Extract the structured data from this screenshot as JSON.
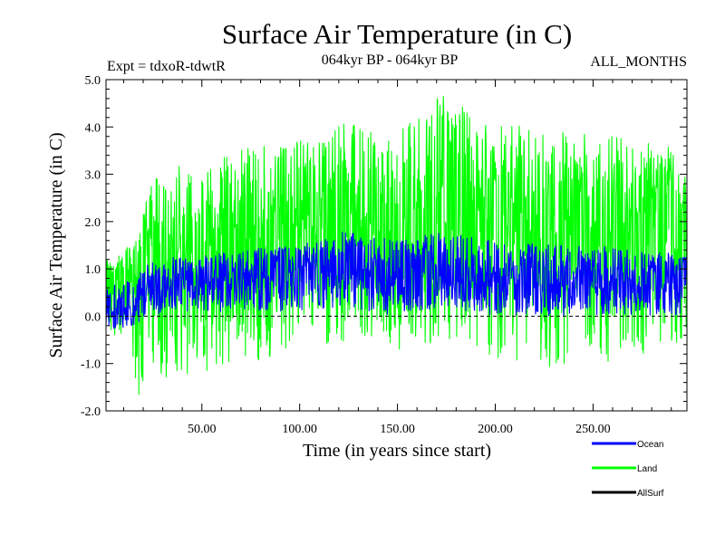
{
  "chart_data": {
    "type": "line",
    "title": "Surface Air Temperature (in C)",
    "subtitle_left": "Expt = tdxoR-tdwtR",
    "subtitle_center": "064kyr BP - 064kyr BP",
    "subtitle_right": "ALL_MONTHS",
    "xlabel": "Time (in years since start)",
    "ylabel": "Surface Air Temperature (in C)",
    "xlim": [
      1,
      298
    ],
    "ylim": [
      -2.0,
      5.0
    ],
    "x_ticks": [
      50,
      100,
      150,
      200,
      250
    ],
    "x_tick_labels": [
      "50.00",
      "100.00",
      "150.00",
      "200.00",
      "250.00"
    ],
    "y_ticks": [
      -2,
      -1,
      0,
      1,
      2,
      3,
      4,
      5
    ],
    "y_tick_labels": [
      "-2.0",
      "-1.0",
      "0.0",
      "1.0",
      "2.0",
      "3.0",
      "4.0",
      "5.0"
    ],
    "reference_line_y": 0.0,
    "series": [
      {
        "name": "Land",
        "color": "#00ff00",
        "envelope_x": [
          1,
          10,
          18,
          22,
          30,
          50,
          75,
          100,
          120,
          150,
          172,
          200,
          230,
          260,
          298
        ],
        "envelope_min": [
          -0.3,
          -0.5,
          -1.7,
          -1.0,
          -1.3,
          -1.2,
          -1.0,
          -0.7,
          -0.6,
          -0.8,
          -0.5,
          -0.9,
          -1.1,
          -1.0,
          -0.5
        ],
        "envelope_max": [
          1.2,
          1.4,
          1.7,
          2.6,
          3.2,
          3.3,
          3.6,
          3.7,
          4.1,
          3.9,
          4.7,
          4.1,
          3.9,
          3.8,
          3.5
        ],
        "mean_x": [
          1,
          15,
          22,
          40,
          70,
          100,
          125,
          150,
          172,
          200,
          250,
          298
        ],
        "mean_y": [
          0.4,
          0.6,
          1.3,
          1.4,
          1.7,
          1.9,
          2.1,
          2.0,
          2.3,
          2.0,
          1.9,
          2.0
        ]
      },
      {
        "name": "Ocean",
        "color": "#0000ff",
        "envelope_x": [
          1,
          15,
          22,
          40,
          70,
          100,
          122,
          150,
          172,
          200,
          250,
          298
        ],
        "envelope_min": [
          -0.3,
          -0.2,
          0.0,
          0.1,
          0.1,
          0.1,
          0.2,
          0.0,
          0.2,
          0.0,
          0.0,
          0.0
        ],
        "envelope_max": [
          0.6,
          0.8,
          1.1,
          1.3,
          1.4,
          1.5,
          1.8,
          1.6,
          1.8,
          1.6,
          1.5,
          1.3
        ],
        "mean_x": [
          1,
          15,
          22,
          40,
          70,
          100,
          122,
          150,
          172,
          200,
          250,
          298
        ],
        "mean_y": [
          0.1,
          0.3,
          0.5,
          0.7,
          0.8,
          0.9,
          1.0,
          0.8,
          0.9,
          0.8,
          0.7,
          0.7
        ]
      },
      {
        "name": "AllSurf",
        "color": "#000000",
        "envelope_x": [],
        "envelope_min": [],
        "envelope_max": [],
        "mean_x": [],
        "mean_y": []
      }
    ],
    "legend": {
      "placement": "bottom-right",
      "entries": [
        {
          "label": "Ocean",
          "color": "#0000ff"
        },
        {
          "label": "Land",
          "color": "#00ff00"
        },
        {
          "label": "AllSurf",
          "color": "#000000"
        }
      ]
    }
  }
}
